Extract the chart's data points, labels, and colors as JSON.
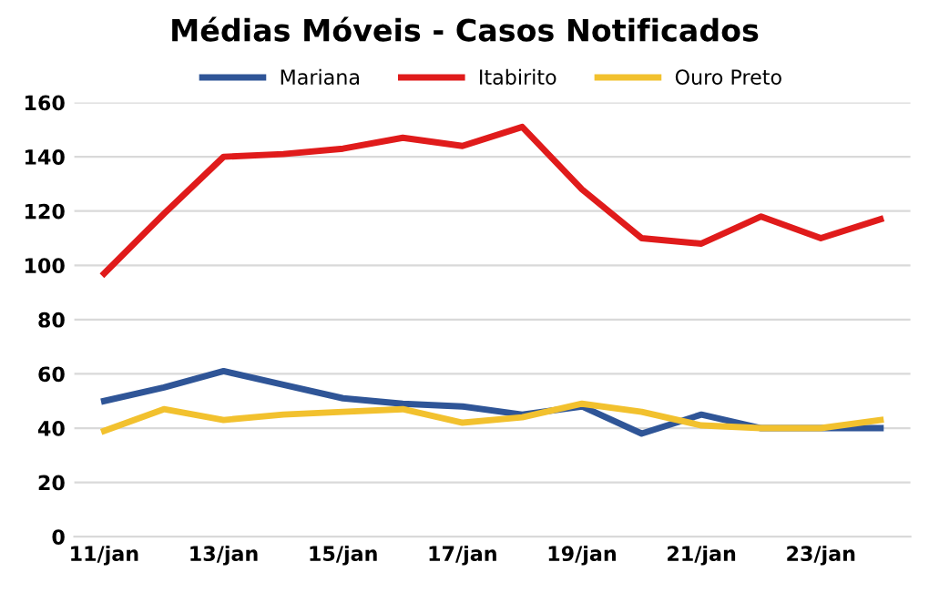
{
  "chart_data": {
    "type": "line",
    "title": "Médias Móveis - Casos Notificados",
    "categories": [
      "11/jan",
      null,
      "13/jan",
      null,
      "15/jan",
      null,
      "17/jan",
      null,
      "19/jan",
      null,
      "21/jan",
      null,
      "23/jan",
      null
    ],
    "series": [
      {
        "name": "Mariana",
        "color": "#2f5597",
        "values": [
          50,
          55,
          61,
          56,
          51,
          49,
          48,
          45,
          48,
          38,
          45,
          40,
          40,
          40
        ]
      },
      {
        "name": "Itabirito",
        "color": "#e01b1b",
        "values": [
          97,
          119,
          140,
          141,
          143,
          147,
          144,
          151,
          128,
          110,
          108,
          118,
          110,
          117
        ]
      },
      {
        "name": "Ouro Preto",
        "color": "#f2c12e",
        "values": [
          39,
          47,
          43,
          45,
          46,
          47,
          42,
          44,
          49,
          46,
          41,
          40,
          40,
          43
        ]
      }
    ],
    "ylim": [
      0,
      160
    ],
    "yticks": [
      0,
      20,
      40,
      60,
      80,
      100,
      120,
      140,
      160
    ],
    "grid": "y",
    "legend": "top",
    "marker": "none",
    "line_style": "solid"
  }
}
